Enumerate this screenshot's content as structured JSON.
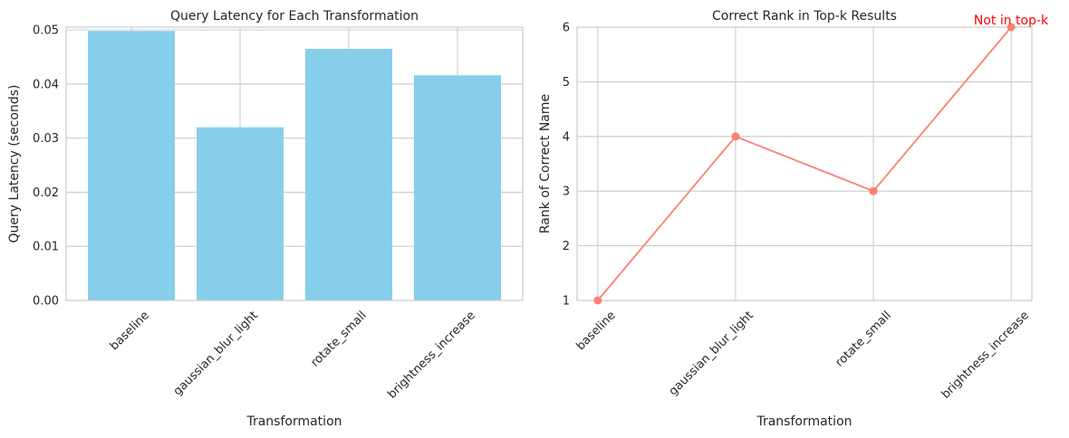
{
  "chart_data": [
    {
      "type": "bar",
      "title": "Query Latency for Each Transformation",
      "xlabel": "Transformation",
      "ylabel": "Query Latency (seconds)",
      "categories": [
        "baseline",
        "gaussian_blur_light",
        "rotate_small",
        "brightness_increase"
      ],
      "values": [
        0.0498,
        0.032,
        0.0465,
        0.0416
      ],
      "ylim": [
        0,
        0.0505
      ],
      "yticks": [
        "0.00",
        "0.01",
        "0.02",
        "0.03",
        "0.04",
        "0.05"
      ],
      "grid": true,
      "color": "#87ceeb"
    },
    {
      "type": "line",
      "title": "Correct Rank in Top-k Results",
      "xlabel": "Transformation",
      "ylabel": "Rank of Correct Name",
      "categories": [
        "baseline",
        "gaussian_blur_light",
        "rotate_small",
        "brightness_increase"
      ],
      "values": [
        1,
        4,
        3,
        6
      ],
      "ylim": [
        1,
        6
      ],
      "yticks": [
        "1",
        "2",
        "3",
        "4",
        "5",
        "6"
      ],
      "grid": true,
      "color": "#fa8072",
      "annotation": {
        "text": "Not in top-k",
        "category": "brightness_increase",
        "value": 6,
        "color": "#ff0000"
      }
    }
  ]
}
